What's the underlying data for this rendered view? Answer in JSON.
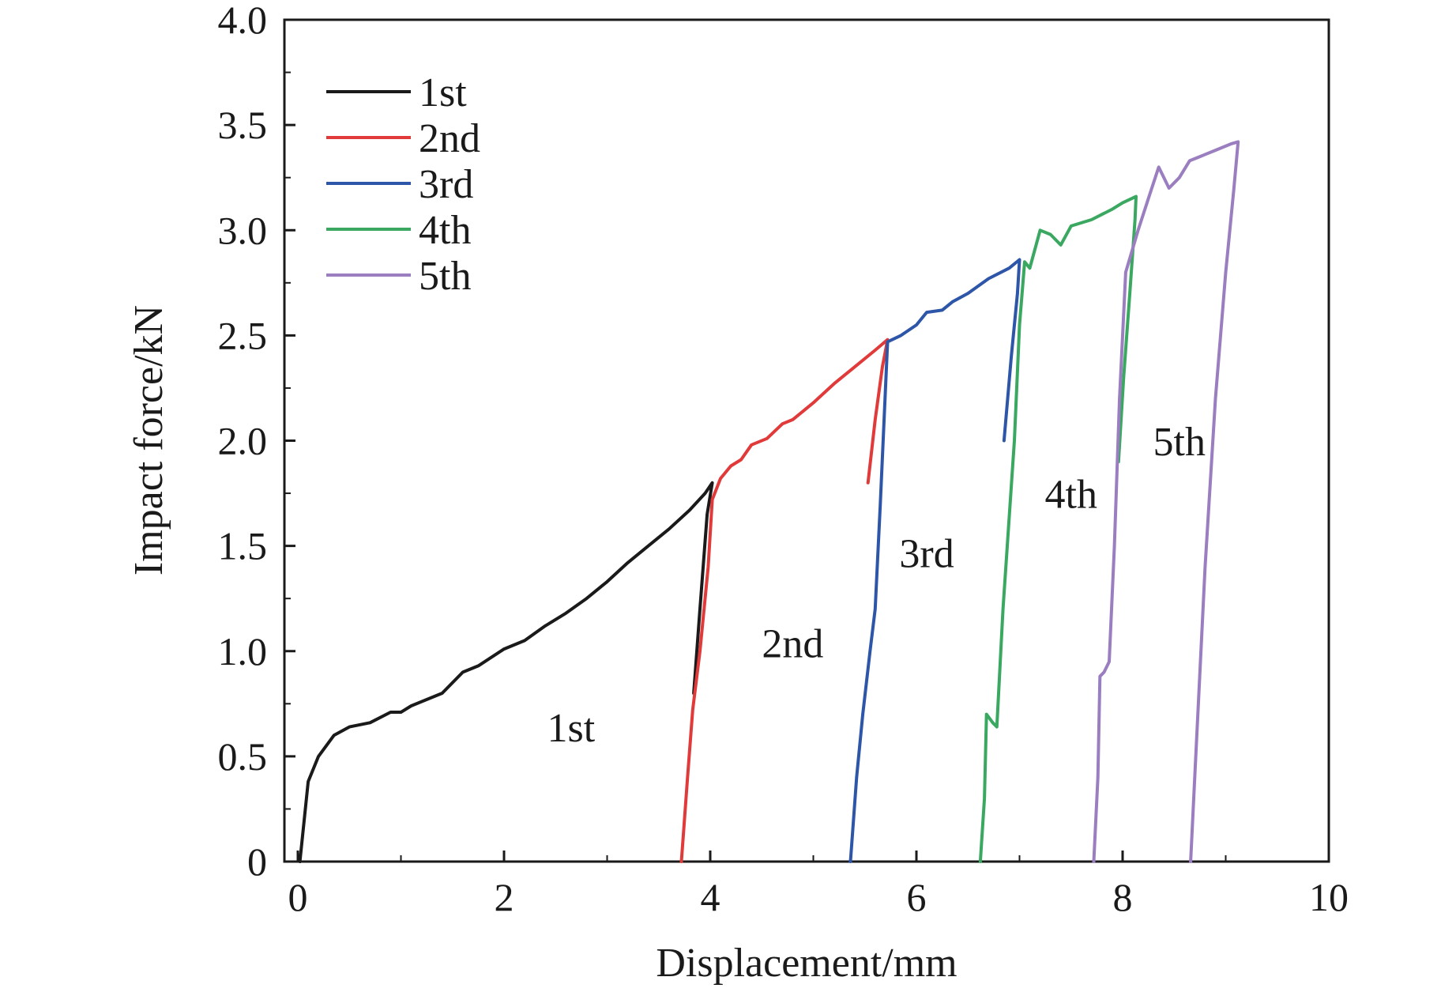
{
  "chart_data": {
    "type": "line",
    "title": "",
    "xlabel": "Displacement/mm",
    "ylabel": "Impact force/kN",
    "xlim": [
      0,
      10
    ],
    "ylim": [
      0,
      4.0
    ],
    "x_ticks": [
      0,
      2,
      4,
      6,
      8,
      10
    ],
    "x_tick_labels": [
      "0",
      "2",
      "4",
      "6",
      "8",
      "10"
    ],
    "y_ticks": [
      0,
      0.5,
      1.0,
      1.5,
      2.0,
      2.5,
      3.0,
      3.5,
      4.0
    ],
    "y_tick_labels": [
      "0",
      "0.5",
      "1.0",
      "1.5",
      "2.0",
      "2.5",
      "3.0",
      "3.5",
      "4.0"
    ],
    "grid": false,
    "legend_position": "top-left",
    "series": [
      {
        "name": "1st",
        "color": "#1a1a1a",
        "points": [
          [
            0.02,
            0.0
          ],
          [
            0.1,
            0.38
          ],
          [
            0.2,
            0.5
          ],
          [
            0.35,
            0.6
          ],
          [
            0.5,
            0.64
          ],
          [
            0.7,
            0.66
          ],
          [
            0.9,
            0.71
          ],
          [
            1.0,
            0.71
          ],
          [
            1.1,
            0.74
          ],
          [
            1.4,
            0.8
          ],
          [
            1.6,
            0.9
          ],
          [
            1.75,
            0.93
          ],
          [
            2.0,
            1.01
          ],
          [
            2.2,
            1.05
          ],
          [
            2.4,
            1.12
          ],
          [
            2.6,
            1.18
          ],
          [
            2.8,
            1.25
          ],
          [
            3.0,
            1.33
          ],
          [
            3.2,
            1.42
          ],
          [
            3.4,
            1.5
          ],
          [
            3.6,
            1.58
          ],
          [
            3.8,
            1.67
          ],
          [
            3.95,
            1.75
          ],
          [
            4.02,
            1.8
          ],
          [
            3.97,
            1.65
          ],
          [
            3.9,
            1.2
          ],
          [
            3.84,
            0.8
          ]
        ]
      },
      {
        "name": "2nd",
        "color": "#e03a3a",
        "points": [
          [
            3.72,
            0.0
          ],
          [
            3.78,
            0.4
          ],
          [
            3.83,
            0.72
          ],
          [
            3.9,
            1.0
          ],
          [
            3.98,
            1.4
          ],
          [
            4.02,
            1.72
          ],
          [
            4.1,
            1.82
          ],
          [
            4.2,
            1.88
          ],
          [
            4.3,
            1.91
          ],
          [
            4.4,
            1.98
          ],
          [
            4.55,
            2.01
          ],
          [
            4.7,
            2.08
          ],
          [
            4.8,
            2.1
          ],
          [
            5.0,
            2.18
          ],
          [
            5.2,
            2.27
          ],
          [
            5.4,
            2.35
          ],
          [
            5.6,
            2.43
          ],
          [
            5.72,
            2.48
          ],
          [
            5.67,
            2.35
          ],
          [
            5.6,
            2.1
          ],
          [
            5.53,
            1.8
          ]
        ]
      },
      {
        "name": "3rd",
        "color": "#2e56a8",
        "points": [
          [
            5.36,
            0.0
          ],
          [
            5.42,
            0.4
          ],
          [
            5.48,
            0.7
          ],
          [
            5.55,
            1.0
          ],
          [
            5.6,
            1.2
          ],
          [
            5.65,
            1.7
          ],
          [
            5.72,
            2.47
          ],
          [
            5.85,
            2.5
          ],
          [
            6.0,
            2.55
          ],
          [
            6.1,
            2.61
          ],
          [
            6.25,
            2.62
          ],
          [
            6.35,
            2.66
          ],
          [
            6.5,
            2.7
          ],
          [
            6.7,
            2.77
          ],
          [
            6.9,
            2.82
          ],
          [
            7.0,
            2.86
          ],
          [
            6.98,
            2.7
          ],
          [
            6.92,
            2.4
          ],
          [
            6.85,
            2.0
          ]
        ]
      },
      {
        "name": "4th",
        "color": "#3aa860",
        "points": [
          [
            6.62,
            0.0
          ],
          [
            6.66,
            0.3
          ],
          [
            6.68,
            0.7
          ],
          [
            6.74,
            0.66
          ],
          [
            6.78,
            0.64
          ],
          [
            6.84,
            1.2
          ],
          [
            6.95,
            2.0
          ],
          [
            7.0,
            2.55
          ],
          [
            7.05,
            2.85
          ],
          [
            7.1,
            2.82
          ],
          [
            7.2,
            3.0
          ],
          [
            7.3,
            2.98
          ],
          [
            7.4,
            2.93
          ],
          [
            7.5,
            3.02
          ],
          [
            7.7,
            3.05
          ],
          [
            7.9,
            3.1
          ],
          [
            8.0,
            3.13
          ],
          [
            8.13,
            3.16
          ],
          [
            8.12,
            3.05
          ],
          [
            8.07,
            2.7
          ],
          [
            8.01,
            2.3
          ],
          [
            7.96,
            1.9
          ]
        ]
      },
      {
        "name": "5th",
        "color": "#9a7ec0",
        "points": [
          [
            7.72,
            0.0
          ],
          [
            7.76,
            0.4
          ],
          [
            7.78,
            0.88
          ],
          [
            7.82,
            0.9
          ],
          [
            7.87,
            0.95
          ],
          [
            7.92,
            1.5
          ],
          [
            7.97,
            2.2
          ],
          [
            8.03,
            2.8
          ],
          [
            8.15,
            3.0
          ],
          [
            8.25,
            3.15
          ],
          [
            8.35,
            3.3
          ],
          [
            8.45,
            3.2
          ],
          [
            8.55,
            3.25
          ],
          [
            8.65,
            3.33
          ],
          [
            8.75,
            3.35
          ],
          [
            8.9,
            3.38
          ],
          [
            9.05,
            3.41
          ],
          [
            9.12,
            3.42
          ],
          [
            9.08,
            3.2
          ],
          [
            9.0,
            2.8
          ],
          [
            8.9,
            2.2
          ],
          [
            8.8,
            1.4
          ],
          [
            8.7,
            0.4
          ],
          [
            8.66,
            0.0
          ]
        ]
      }
    ],
    "annotations": [
      {
        "text": "1st",
        "x": 2.65,
        "y": 0.57
      },
      {
        "text": "2nd",
        "x": 4.8,
        "y": 0.97
      },
      {
        "text": "3rd",
        "x": 6.1,
        "y": 1.4
      },
      {
        "text": "4th",
        "x": 7.5,
        "y": 1.68
      },
      {
        "text": "5th",
        "x": 8.55,
        "y": 1.93
      }
    ]
  }
}
